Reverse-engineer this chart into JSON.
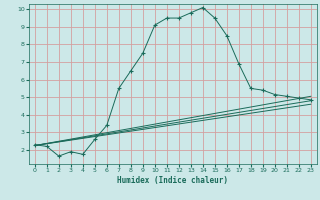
{
  "xlabel": "Humidex (Indice chaleur)",
  "bg_color": "#cce8e8",
  "grid_color": "#d4a0a0",
  "line_color": "#1a6b5a",
  "xlim": [
    -0.5,
    23.5
  ],
  "ylim": [
    1.2,
    10.3
  ],
  "xticks": [
    0,
    1,
    2,
    3,
    4,
    5,
    6,
    7,
    8,
    9,
    10,
    11,
    12,
    13,
    14,
    15,
    16,
    17,
    18,
    19,
    20,
    21,
    22,
    23
  ],
  "yticks": [
    2,
    3,
    4,
    5,
    6,
    7,
    8,
    9,
    10
  ],
  "main_x": [
    0,
    1,
    2,
    3,
    4,
    5,
    6,
    7,
    8,
    9,
    10,
    11,
    12,
    13,
    14,
    15,
    16,
    17,
    18,
    19,
    20,
    21,
    22,
    23
  ],
  "main_y": [
    2.3,
    2.2,
    1.65,
    1.9,
    1.75,
    2.6,
    3.4,
    5.5,
    6.5,
    7.5,
    9.1,
    9.5,
    9.5,
    9.8,
    10.1,
    9.5,
    8.5,
    6.9,
    5.5,
    5.4,
    5.15,
    5.05,
    4.95,
    4.85
  ],
  "line2_x": [
    0,
    23
  ],
  "line2_y": [
    2.25,
    5.05
  ],
  "line3_x": [
    0,
    23
  ],
  "line3_y": [
    2.25,
    4.8
  ],
  "line4_x": [
    0,
    23
  ],
  "line4_y": [
    2.25,
    4.6
  ]
}
